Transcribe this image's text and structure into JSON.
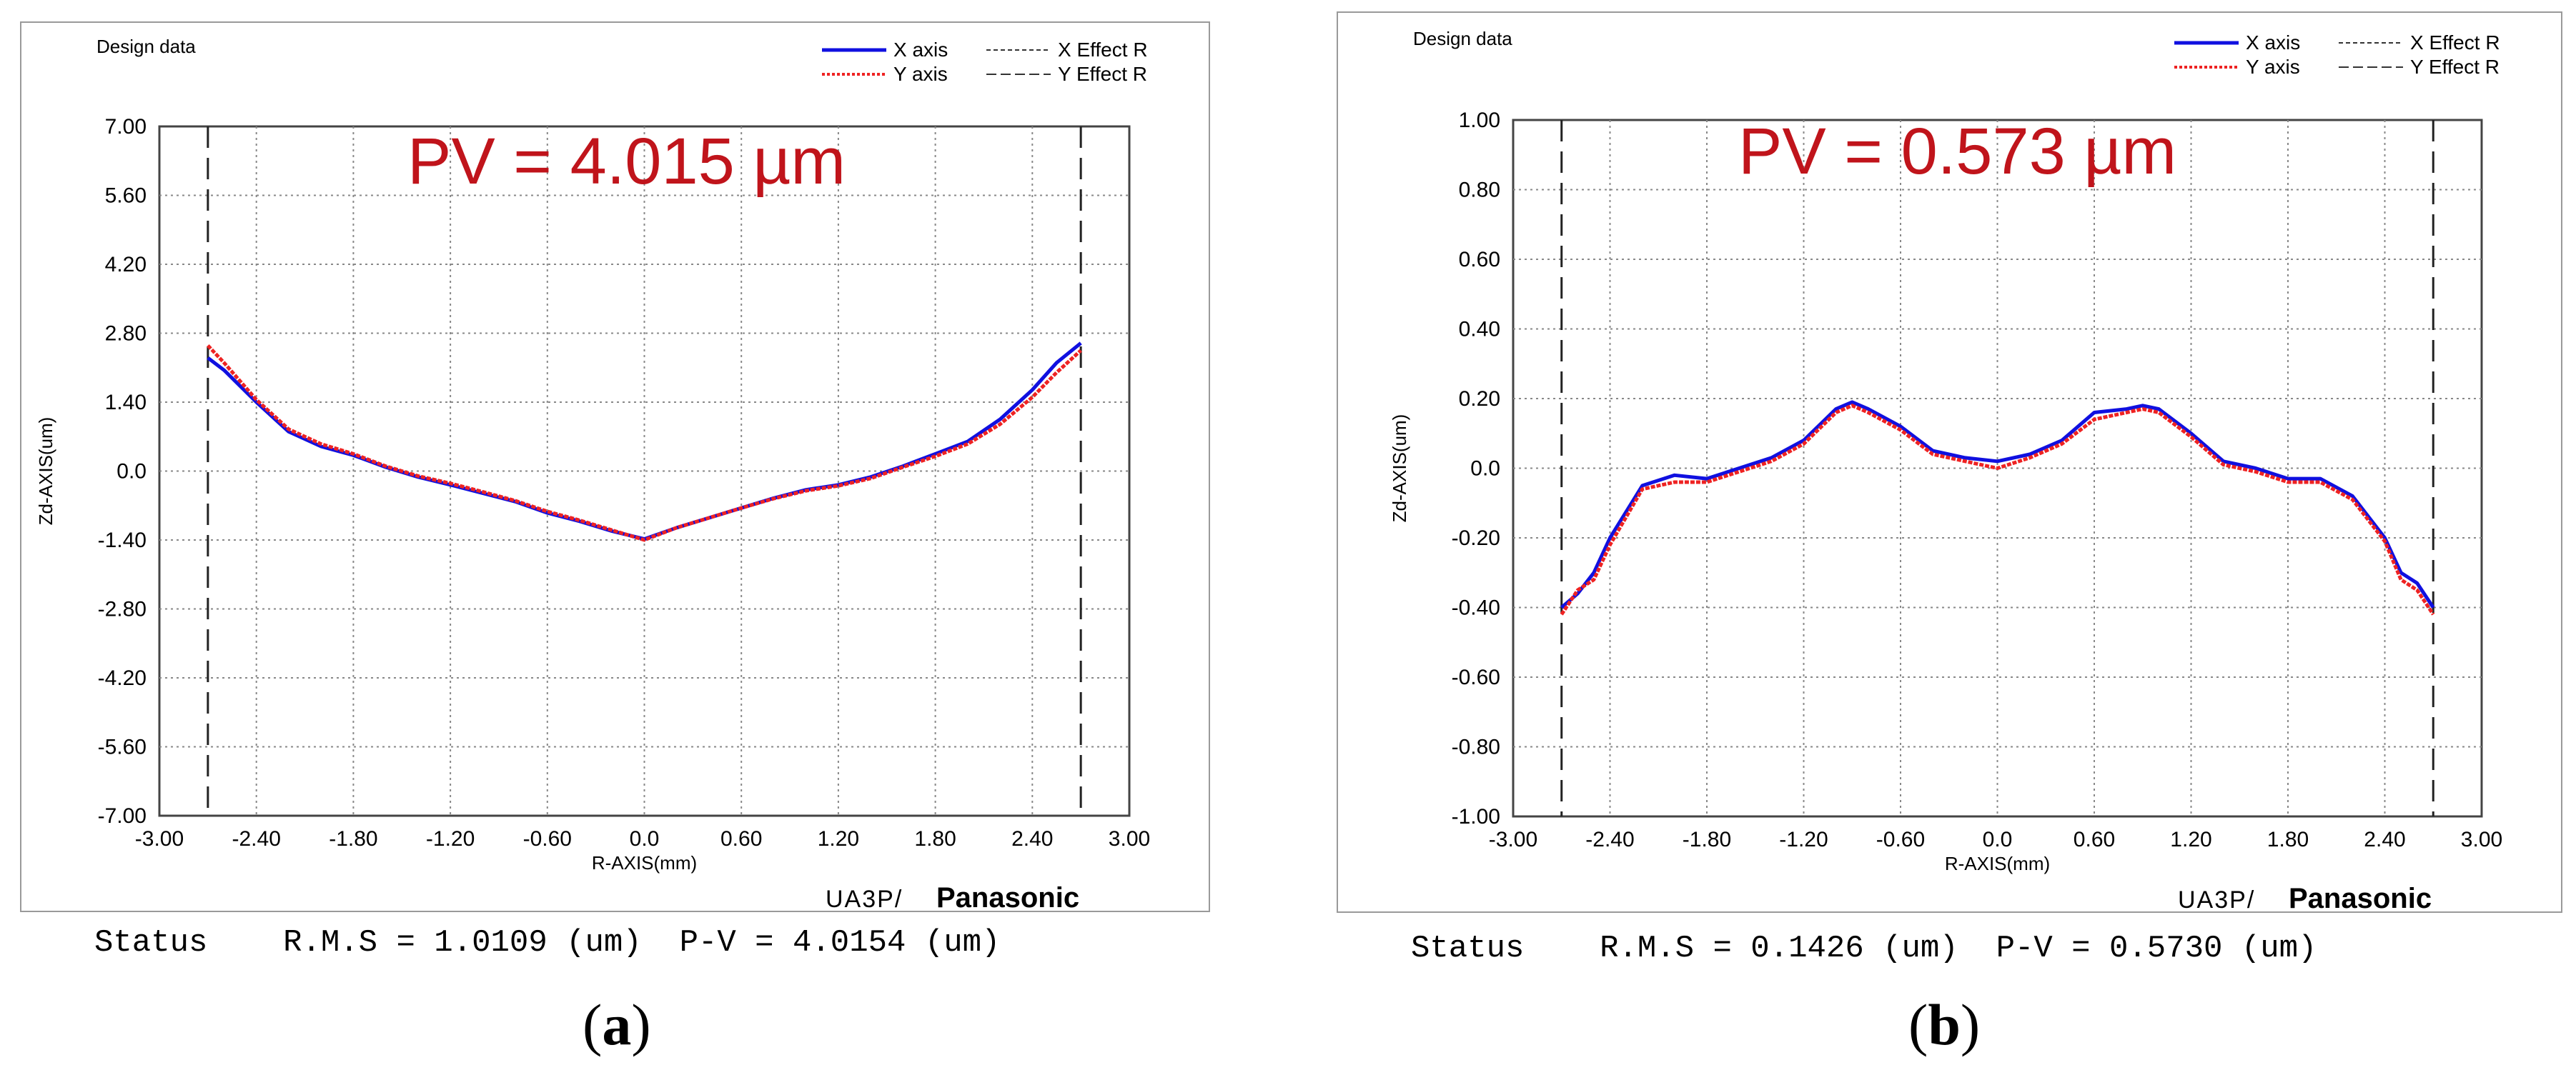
{
  "chart_data": [
    {
      "id": "a",
      "type": "line",
      "header": "Design data",
      "annotation": "PV = 4.015 µm",
      "xlabel": "R-AXIS(mm)",
      "ylabel": "Zd-AXIS(um)",
      "xlim": [
        -3.0,
        3.0
      ],
      "ylim": [
        -7.0,
        7.0
      ],
      "xticks": [
        "-3.00",
        "-2.40",
        "-1.80",
        "-1.20",
        "-0.60",
        "0.0",
        "0.60",
        "1.20",
        "1.80",
        "2.40",
        "3.00"
      ],
      "yticks": [
        "7.00",
        "5.60",
        "4.20",
        "2.80",
        "1.40",
        "0.0",
        "-1.40",
        "-2.80",
        "-4.20",
        "-5.60",
        "-7.00"
      ],
      "effect_r": [
        -2.7,
        2.7
      ],
      "legend": [
        "X axis",
        "Y axis",
        "X Effect R",
        "Y Effect R"
      ],
      "brand_prefix": "UA3P/",
      "brand": "Panasonic",
      "series": [
        {
          "name": "X axis",
          "color": "#1010e0",
          "x": [
            -2.7,
            -2.6,
            -2.4,
            -2.2,
            -2.0,
            -1.8,
            -1.6,
            -1.4,
            -1.2,
            -1.0,
            -0.8,
            -0.6,
            -0.4,
            -0.2,
            0.0,
            0.2,
            0.4,
            0.6,
            0.8,
            1.0,
            1.2,
            1.4,
            1.6,
            1.8,
            2.0,
            2.2,
            2.4,
            2.55,
            2.7
          ],
          "y": [
            2.3,
            2.05,
            1.4,
            0.8,
            0.5,
            0.32,
            0.08,
            -0.12,
            -0.28,
            -0.45,
            -0.62,
            -0.85,
            -1.02,
            -1.22,
            -1.38,
            -1.15,
            -0.95,
            -0.75,
            -0.55,
            -0.38,
            -0.28,
            -0.12,
            0.1,
            0.35,
            0.6,
            1.05,
            1.65,
            2.2,
            2.6
          ]
        },
        {
          "name": "Y axis",
          "color": "#ee2222",
          "x": [
            -2.7,
            -2.6,
            -2.4,
            -2.2,
            -2.0,
            -1.8,
            -1.6,
            -1.4,
            -1.2,
            -1.0,
            -0.8,
            -0.6,
            -0.4,
            -0.2,
            0.0,
            0.2,
            0.4,
            0.6,
            0.8,
            1.0,
            1.2,
            1.4,
            1.6,
            1.8,
            2.0,
            2.2,
            2.4,
            2.55,
            2.7
          ],
          "y": [
            2.55,
            2.2,
            1.45,
            0.85,
            0.55,
            0.35,
            0.1,
            -0.1,
            -0.25,
            -0.42,
            -0.6,
            -0.82,
            -1.0,
            -1.2,
            -1.4,
            -1.15,
            -0.95,
            -0.75,
            -0.56,
            -0.4,
            -0.3,
            -0.15,
            0.08,
            0.3,
            0.55,
            0.95,
            1.5,
            2.0,
            2.45
          ]
        }
      ],
      "status": {
        "label": "Status",
        "rms": "R.M.S = 1.0109 (um)",
        "pv": "P-V = 4.0154 (um)"
      },
      "sublabel": "a"
    },
    {
      "id": "b",
      "type": "line",
      "header": "Design data",
      "annotation": "PV = 0.573 µm",
      "xlabel": "R-AXIS(mm)",
      "ylabel": "Zd-AXIS(um)",
      "xlim": [
        -3.0,
        3.0
      ],
      "ylim": [
        -1.0,
        1.0
      ],
      "xticks": [
        "-3.00",
        "-2.40",
        "-1.80",
        "-1.20",
        "-0.60",
        "0.0",
        "0.60",
        "1.20",
        "1.80",
        "2.40",
        "3.00"
      ],
      "yticks": [
        "1.00",
        "0.80",
        "0.60",
        "0.40",
        "0.20",
        "0.0",
        "-0.20",
        "-0.40",
        "-0.60",
        "-0.80",
        "-1.00"
      ],
      "effect_r": [
        -2.7,
        2.7
      ],
      "legend": [
        "X axis",
        "Y axis",
        "X Effect R",
        "Y Effect R"
      ],
      "brand_prefix": "UA3P/",
      "brand": "Panasonic",
      "series": [
        {
          "name": "X axis",
          "color": "#1010e0",
          "x": [
            -2.7,
            -2.6,
            -2.5,
            -2.4,
            -2.2,
            -2.0,
            -1.8,
            -1.6,
            -1.4,
            -1.2,
            -1.0,
            -0.9,
            -0.8,
            -0.6,
            -0.4,
            -0.2,
            0.0,
            0.2,
            0.4,
            0.6,
            0.8,
            0.9,
            1.0,
            1.2,
            1.4,
            1.6,
            1.8,
            2.0,
            2.2,
            2.4,
            2.5,
            2.6,
            2.7
          ],
          "y": [
            -0.4,
            -0.36,
            -0.3,
            -0.2,
            -0.05,
            -0.02,
            -0.03,
            0.0,
            0.03,
            0.08,
            0.17,
            0.19,
            0.17,
            0.12,
            0.05,
            0.03,
            0.02,
            0.04,
            0.08,
            0.16,
            0.17,
            0.18,
            0.17,
            0.1,
            0.02,
            0.0,
            -0.03,
            -0.03,
            -0.08,
            -0.2,
            -0.3,
            -0.33,
            -0.4
          ]
        },
        {
          "name": "Y axis",
          "color": "#ee2222",
          "x": [
            -2.7,
            -2.6,
            -2.5,
            -2.4,
            -2.2,
            -2.0,
            -1.8,
            -1.6,
            -1.4,
            -1.2,
            -1.0,
            -0.9,
            -0.8,
            -0.6,
            -0.4,
            -0.2,
            0.0,
            0.2,
            0.4,
            0.6,
            0.8,
            0.9,
            1.0,
            1.2,
            1.4,
            1.6,
            1.8,
            2.0,
            2.2,
            2.4,
            2.5,
            2.6,
            2.7
          ],
          "y": [
            -0.42,
            -0.35,
            -0.32,
            -0.22,
            -0.06,
            -0.04,
            -0.04,
            -0.01,
            0.02,
            0.07,
            0.16,
            0.18,
            0.16,
            0.11,
            0.04,
            0.02,
            0.0,
            0.03,
            0.07,
            0.14,
            0.16,
            0.17,
            0.16,
            0.09,
            0.01,
            -0.01,
            -0.04,
            -0.04,
            -0.09,
            -0.21,
            -0.32,
            -0.35,
            -0.42
          ]
        }
      ],
      "status": {
        "label": "Status",
        "rms": "R.M.S = 0.1426 (um)",
        "pv": "P-V = 0.5730 (um)"
      },
      "sublabel": "b"
    }
  ]
}
